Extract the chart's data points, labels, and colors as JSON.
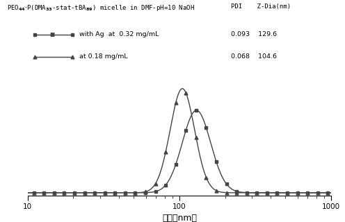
{
  "title_left": "PEO",
  "title_full": "PEO44-P(DMA33-stat-tBA89) micelle in DMF-pH=10 NaOH",
  "xlabel": "直径（nm）",
  "xlim": [
    10,
    1000
  ],
  "ylim_bottom": -0.3,
  "ylim_top": 13.0,
  "series1_mean_log": 4.864,
  "series1_std": 0.215,
  "series1_peak": 9.5,
  "series2_mean_log": 4.65,
  "series2_std": 0.185,
  "series2_peak": 12.0,
  "color": "#444444",
  "background_color": "#ffffff",
  "marker1": "s",
  "marker2": "^",
  "marker_size": 3.5,
  "n_markers": 30,
  "marker_xmin": 11,
  "marker_xmax": 950,
  "line_width": 1.0
}
